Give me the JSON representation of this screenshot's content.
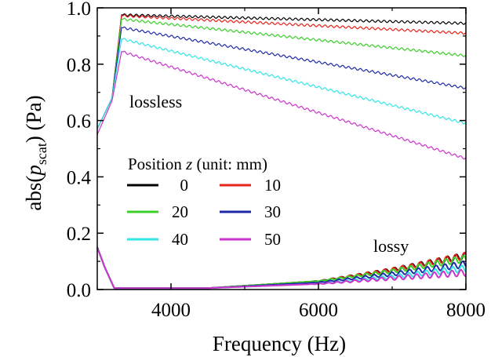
{
  "chart_data": {
    "type": "line",
    "xlabel": "Frequency (Hz)",
    "ylabel_prefix": "abs(",
    "ylabel_var": "p",
    "ylabel_sub": "scat",
    "ylabel_suffix": ") (Pa)",
    "xlim": [
      3000,
      8000
    ],
    "ylim": [
      0.0,
      1.0
    ],
    "xticks": [
      4000,
      6000,
      8000
    ],
    "xtick_labels": [
      "4000",
      "6000",
      "8000"
    ],
    "yticks": [
      0.0,
      0.2,
      0.4,
      0.6,
      0.8,
      1.0
    ],
    "ytick_labels": [
      "0.0",
      "0.2",
      "0.4",
      "0.6",
      "0.8",
      "1.0"
    ],
    "grid": false,
    "legend": {
      "title_prefix": "Position ",
      "title_var": "z",
      "title_suffix": " (unit: mm)",
      "placement": "middle-left"
    },
    "annotations": {
      "lossless": "lossless",
      "lossy": "lossy"
    },
    "series": [
      {
        "name": "0",
        "color": "#000000",
        "lossless": {
          "x": [
            3000,
            3200,
            3330,
            8000
          ],
          "y": [
            0.57,
            0.68,
            0.975,
            0.945
          ]
        },
        "lossy": {
          "x": [
            3000,
            3100,
            3230,
            4500,
            6000,
            7000,
            8000
          ],
          "y": [
            0.15,
            0.08,
            0.005,
            0.005,
            0.03,
            0.07,
            0.12
          ]
        }
      },
      {
        "name": "10",
        "color": "#e8241d",
        "lossless": {
          "x": [
            3000,
            3200,
            3330,
            8000
          ],
          "y": [
            0.57,
            0.68,
            0.972,
            0.91
          ]
        },
        "lossy": {
          "x": [
            3000,
            3100,
            3230,
            4500,
            6000,
            7000,
            8000
          ],
          "y": [
            0.15,
            0.08,
            0.005,
            0.005,
            0.03,
            0.07,
            0.12
          ]
        }
      },
      {
        "name": "20",
        "color": "#3ccf2a",
        "lossless": {
          "x": [
            3000,
            3200,
            3330,
            8000
          ],
          "y": [
            0.57,
            0.68,
            0.96,
            0.83
          ]
        },
        "lossy": {
          "x": [
            3000,
            3100,
            3230,
            4500,
            6000,
            7000,
            8000
          ],
          "y": [
            0.15,
            0.08,
            0.005,
            0.005,
            0.03,
            0.065,
            0.11
          ]
        }
      },
      {
        "name": "30",
        "color": "#1f2aa8",
        "lossless": {
          "x": [
            3000,
            3200,
            3330,
            8000
          ],
          "y": [
            0.57,
            0.68,
            0.93,
            0.715
          ]
        },
        "lossy": {
          "x": [
            3000,
            3100,
            3230,
            4500,
            6000,
            7000,
            8000
          ],
          "y": [
            0.15,
            0.08,
            0.005,
            0.005,
            0.025,
            0.055,
            0.09
          ]
        }
      },
      {
        "name": "40",
        "color": "#33e5e5",
        "lossless": {
          "x": [
            3000,
            3200,
            3330,
            8000
          ],
          "y": [
            0.57,
            0.68,
            0.89,
            0.59
          ]
        },
        "lossy": {
          "x": [
            3000,
            3100,
            3230,
            4500,
            6000,
            7000,
            8000
          ],
          "y": [
            0.15,
            0.08,
            0.005,
            0.005,
            0.02,
            0.045,
            0.075
          ]
        }
      },
      {
        "name": "50",
        "color": "#cc33cc",
        "lossless": {
          "x": [
            3000,
            3200,
            3330,
            8000
          ],
          "y": [
            0.55,
            0.67,
            0.845,
            0.465
          ]
        },
        "lossy": {
          "x": [
            3000,
            3100,
            3230,
            4500,
            6000,
            7000,
            8000
          ],
          "y": [
            0.15,
            0.08,
            0.005,
            0.005,
            0.02,
            0.04,
            0.06
          ]
        }
      }
    ]
  }
}
